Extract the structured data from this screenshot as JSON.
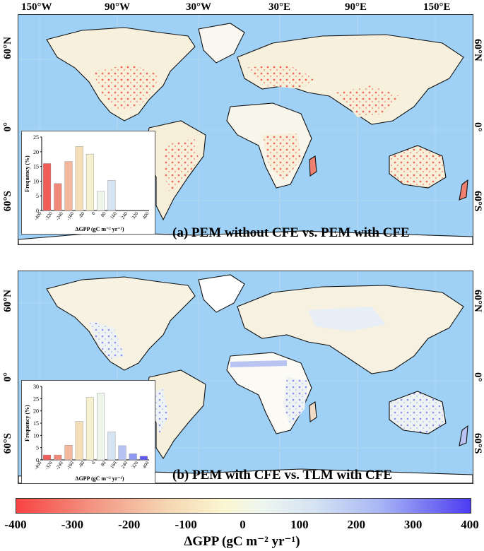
{
  "map": {
    "longitude_labels": [
      "150°W",
      "90°W",
      "30°W",
      "30°E",
      "90°E",
      "150°E"
    ],
    "latitude_labels": [
      "60°N",
      "0°",
      "60°S"
    ]
  },
  "panels": [
    {
      "caption": "(a) PEM without CFE vs. PEM with CFE",
      "inset": {
        "ylabel": "Frequency (%)",
        "xlabel": "ΔGPP (gC m⁻² yr⁻¹)",
        "yticks": [
          "0",
          "5",
          "10",
          "15",
          "20",
          "25"
        ],
        "xticks": [
          "-400",
          "-320",
          "-240",
          "-160",
          "-80",
          "0",
          "80",
          "160",
          "240",
          "320",
          "400"
        ]
      }
    },
    {
      "caption": "(b) PEM with CFE vs. TLM with CFE",
      "inset": {
        "ylabel": "Frequency (%)",
        "xlabel": "ΔGPP (gC m⁻² yr⁻¹)",
        "yticks": [
          "0",
          "5",
          "10",
          "15",
          "20",
          "25",
          "30"
        ],
        "xticks": [
          "-400",
          "-320",
          "-240",
          "-160",
          "-80",
          "0",
          "80",
          "160",
          "240",
          "320",
          "400"
        ]
      }
    }
  ],
  "chart_data": [
    {
      "type": "bar",
      "title": "(a) PEM without CFE vs. PEM with CFE",
      "xlabel": "ΔGPP (gC m⁻² yr⁻¹)",
      "ylabel": "Frequency (%)",
      "ylim": [
        0,
        25
      ],
      "xlim": [
        -400,
        400
      ],
      "bins": [
        "-400 to -320",
        "-320 to -240",
        "-240 to -160",
        "-160 to -80",
        "-80 to 0",
        "0 to 80",
        "80 to 160",
        "160 to 240",
        "240 to 320",
        "320 to 400"
      ],
      "bin_centers": [
        -360,
        -280,
        -200,
        -120,
        -40,
        40,
        120,
        200,
        280,
        360
      ],
      "values": [
        16,
        9.2,
        16.7,
        21.8,
        19.2,
        6.5,
        10.3,
        0,
        0,
        0
      ],
      "colors": [
        "#f25c56",
        "#f18a7a",
        "#f4b89e",
        "#f6dfb8",
        "#f8f1cf",
        "#eef6ec",
        "#d6e4f2",
        "#b7c3f3",
        "#8f98f2",
        "#5e56ee"
      ]
    },
    {
      "type": "bar",
      "title": "(b) PEM with CFE vs. TLM with CFE",
      "xlabel": "ΔGPP (gC m⁻² yr⁻¹)",
      "ylabel": "Frequency (%)",
      "ylim": [
        0,
        30
      ],
      "xlim": [
        -400,
        400
      ],
      "bins": [
        "-400 to -320",
        "-320 to -240",
        "-240 to -160",
        "-160 to -80",
        "-80 to 0",
        "0 to 80",
        "80 to 160",
        "160 to 240",
        "240 to 320",
        "320 to 400"
      ],
      "bin_centers": [
        -360,
        -280,
        -200,
        -120,
        -40,
        40,
        120,
        200,
        280,
        360
      ],
      "values": [
        2,
        2,
        6,
        15.7,
        25.5,
        27.2,
        11.5,
        5.8,
        2.5,
        1.5
      ],
      "colors": [
        "#f25c56",
        "#f18a7a",
        "#f4b89e",
        "#f6dfb8",
        "#f8f1cf",
        "#eef6ec",
        "#d6e4f2",
        "#b7c3f3",
        "#8f98f2",
        "#5e56ee"
      ]
    }
  ],
  "colorbar": {
    "ticks": [
      "-400",
      "-300",
      "-200",
      "-100",
      "0",
      "100",
      "200",
      "300",
      "400"
    ],
    "title": "ΔGPP (gC m⁻² yr⁻¹)",
    "stops": [
      "#f84343",
      "#f39a86",
      "#f4d5b1",
      "#fbf7d2",
      "#eef6ef",
      "#d4e2f3",
      "#a8b6f4",
      "#4d3cf2"
    ]
  }
}
